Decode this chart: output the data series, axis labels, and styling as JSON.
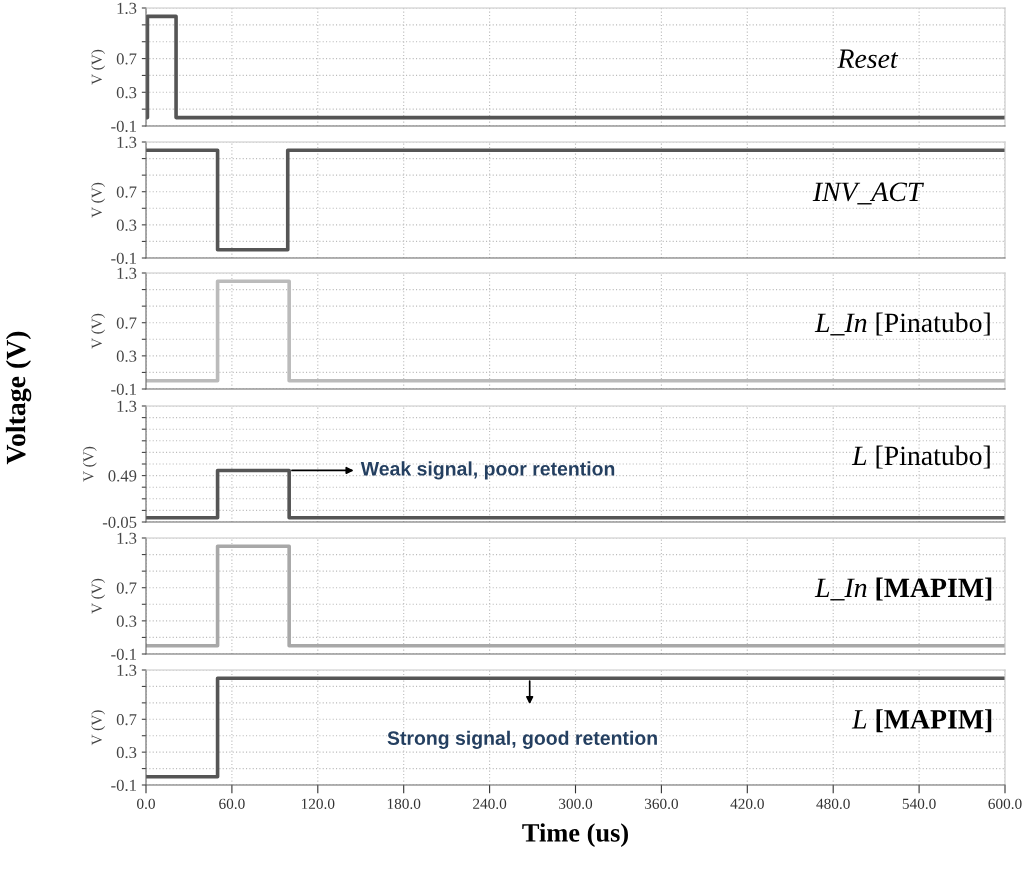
{
  "chart_data": [
    {
      "type": "line",
      "title": "Reset",
      "ylabel": "V (V)",
      "x": [
        0,
        1,
        1,
        21,
        21,
        600
      ],
      "series": [
        {
          "color": "#555555",
          "values": [
            0,
            0,
            1.2,
            1.2,
            0,
            0
          ]
        }
      ],
      "xlim": [
        0,
        600
      ],
      "xticks": [
        {
          "value": 0,
          "label": null
        },
        {
          "value": 60,
          "label": null
        },
        {
          "value": 120,
          "label": null
        },
        {
          "value": 180,
          "label": null
        },
        {
          "value": 240,
          "label": null
        },
        {
          "value": 300,
          "label": null
        },
        {
          "value": 360,
          "label": null
        },
        {
          "value": 420,
          "label": null
        },
        {
          "value": 480,
          "label": null
        },
        {
          "value": 540,
          "label": null
        },
        {
          "value": 600,
          "label": null
        }
      ],
      "ylim": [
        -0.1,
        1.3
      ],
      "yticks": [
        -0.1,
        {
          "value": 0.1,
          "label": null
        },
        0.3,
        {
          "value": 0.5,
          "label": null
        },
        0.7,
        {
          "value": 0.9,
          "label": null
        },
        {
          "value": 1.1,
          "label": null
        },
        1.3
      ],
      "grid": true,
      "tick_labels": "y"
    },
    {
      "type": "line",
      "title": "INV_ACT",
      "ylabel": "V (V)",
      "x": [
        0,
        50,
        50,
        99,
        99,
        600
      ],
      "series": [
        {
          "color": "#555555",
          "values": [
            1.2,
            1.2,
            0,
            0,
            1.2,
            1.2
          ]
        }
      ],
      "xlim": [
        0,
        600
      ],
      "xticks": [
        {
          "value": 0,
          "label": null
        },
        {
          "value": 60,
          "label": null
        },
        {
          "value": 120,
          "label": null
        },
        {
          "value": 180,
          "label": null
        },
        {
          "value": 240,
          "label": null
        },
        {
          "value": 300,
          "label": null
        },
        {
          "value": 360,
          "label": null
        },
        {
          "value": 420,
          "label": null
        },
        {
          "value": 480,
          "label": null
        },
        {
          "value": 540,
          "label": null
        },
        {
          "value": 600,
          "label": null
        }
      ],
      "ylim": [
        -0.1,
        1.3
      ],
      "yticks": [
        -0.1,
        {
          "value": 0.1,
          "label": null
        },
        0.3,
        {
          "value": 0.5,
          "label": null
        },
        0.7,
        {
          "value": 0.9,
          "label": null
        },
        {
          "value": 1.1,
          "label": null
        },
        1.3
      ],
      "grid": true,
      "tick_labels": "y"
    },
    {
      "type": "line",
      "title": "L_In",
      "subtitle": "[Pinatubo]",
      "ylabel": "V (V)",
      "x": [
        0,
        50,
        50,
        100,
        100,
        600
      ],
      "series": [
        {
          "color": "#bbbbbb",
          "values": [
            0,
            0,
            1.2,
            1.2,
            0,
            0
          ]
        }
      ],
      "xlim": [
        0,
        600
      ],
      "xticks": [
        {
          "value": 0,
          "label": null
        },
        {
          "value": 60,
          "label": null
        },
        {
          "value": 120,
          "label": null
        },
        {
          "value": 180,
          "label": null
        },
        {
          "value": 240,
          "label": null
        },
        {
          "value": 300,
          "label": null
        },
        {
          "value": 360,
          "label": null
        },
        {
          "value": 420,
          "label": null
        },
        {
          "value": 480,
          "label": null
        },
        {
          "value": 540,
          "label": null
        },
        {
          "value": 600,
          "label": null
        }
      ],
      "ylim": [
        -0.1,
        1.3
      ],
      "yticks": [
        -0.1,
        {
          "value": 0.1,
          "label": null
        },
        0.3,
        {
          "value": 0.5,
          "label": null
        },
        0.7,
        {
          "value": 0.9,
          "label": null
        },
        {
          "value": 1.1,
          "label": null
        },
        1.3
      ],
      "grid": true,
      "tick_labels": "y"
    },
    {
      "type": "line",
      "title": "L",
      "subtitle": "[Pinatubo]",
      "ylabel": "V (V)",
      "x": [
        0,
        50,
        50,
        100,
        100,
        600
      ],
      "series": [
        {
          "color": "#555555",
          "values": [
            0,
            0,
            0.55,
            0.55,
            0,
            0
          ]
        }
      ],
      "xlim": [
        0,
        600
      ],
      "xticks": [
        {
          "value": 0,
          "label": null
        },
        {
          "value": 60,
          "label": null
        },
        {
          "value": 120,
          "label": null
        },
        {
          "value": 180,
          "label": null
        },
        {
          "value": 240,
          "label": null
        },
        {
          "value": 300,
          "label": null
        },
        {
          "value": 360,
          "label": null
        },
        {
          "value": 420,
          "label": null
        },
        {
          "value": 480,
          "label": null
        },
        {
          "value": 540,
          "label": null
        },
        {
          "value": 600,
          "label": null
        }
      ],
      "ylim": [
        -0.05,
        1.3
      ],
      "yticks": [
        -0.05,
        {
          "value": 0.085,
          "label": null
        },
        {
          "value": 0.22,
          "label": null
        },
        {
          "value": 0.355,
          "label": null
        },
        0.49,
        {
          "value": 0.625,
          "label": null
        },
        {
          "value": 0.76,
          "label": null
        },
        {
          "value": 0.895,
          "label": null
        },
        {
          "value": 1.03,
          "label": null
        },
        {
          "value": 1.165,
          "label": null
        },
        1.3
      ],
      "grid": true,
      "tick_labels": "y",
      "annotations": [
        "Voltage (V)",
        {
          "text": "Weak signal, poor retention",
          "x": 100,
          "y": 0.55
        }
      ]
    },
    {
      "type": "line",
      "title": "L_In",
      "subtitle": "[MAPIM]",
      "ylabel": "V (V)",
      "x": [
        0,
        50,
        50,
        100,
        100,
        600
      ],
      "series": [
        {
          "color": "#a8a8a8",
          "values": [
            0,
            0,
            1.2,
            1.2,
            0,
            0
          ]
        }
      ],
      "xlim": [
        0,
        600
      ],
      "xticks": [
        {
          "value": 0,
          "label": null
        },
        {
          "value": 60,
          "label": null
        },
        {
          "value": 120,
          "label": null
        },
        {
          "value": 180,
          "label": null
        },
        {
          "value": 240,
          "label": null
        },
        {
          "value": 300,
          "label": null
        },
        {
          "value": 360,
          "label": null
        },
        {
          "value": 420,
          "label": null
        },
        {
          "value": 480,
          "label": null
        },
        {
          "value": 540,
          "label": null
        },
        {
          "value": 600,
          "label": null
        }
      ],
      "ylim": [
        -0.1,
        1.3
      ],
      "yticks": [
        -0.1,
        {
          "value": 0.1,
          "label": null
        },
        0.3,
        {
          "value": 0.5,
          "label": null
        },
        0.7,
        {
          "value": 0.9,
          "label": null
        },
        {
          "value": 1.1,
          "label": null
        },
        1.3
      ],
      "grid": true,
      "tick_labels": "y"
    },
    {
      "type": "line",
      "title": "L",
      "subtitle": "[MAPIM]",
      "ylabel": "V (V)",
      "xlabel": "Time (us)",
      "x": [
        0,
        50,
        50,
        600
      ],
      "series": [
        {
          "color": "#555555",
          "values": [
            0,
            0,
            1.2,
            1.2
          ]
        }
      ],
      "xlim": [
        0,
        600
      ],
      "xticks": [
        {
          "value": 0,
          "label": "0.0"
        },
        {
          "value": 60,
          "label": "60.0"
        },
        {
          "value": 120,
          "label": "120.0"
        },
        {
          "value": 180,
          "label": "180.0"
        },
        {
          "value": 240,
          "label": "240.0"
        },
        {
          "value": 300,
          "label": "300.0"
        },
        {
          "value": 360,
          "label": "360.0"
        },
        {
          "value": 420,
          "label": "420.0"
        },
        {
          "value": 480,
          "label": "480.0"
        },
        {
          "value": 540,
          "label": "540.0"
        },
        {
          "value": 600,
          "label": "600.0"
        }
      ],
      "ylim": [
        -0.1,
        1.3
      ],
      "yticks": [
        -0.1,
        {
          "value": 0.1,
          "label": null
        },
        0.3,
        {
          "value": 0.5,
          "label": null
        },
        0.7,
        {
          "value": 0.9,
          "label": null
        },
        {
          "value": 1.1,
          "label": null
        },
        1.3
      ],
      "grid": true,
      "annotations": [
        {
          "text": "Strong signal, good retention",
          "x": 268,
          "y": 1.2
        }
      ]
    }
  ]
}
